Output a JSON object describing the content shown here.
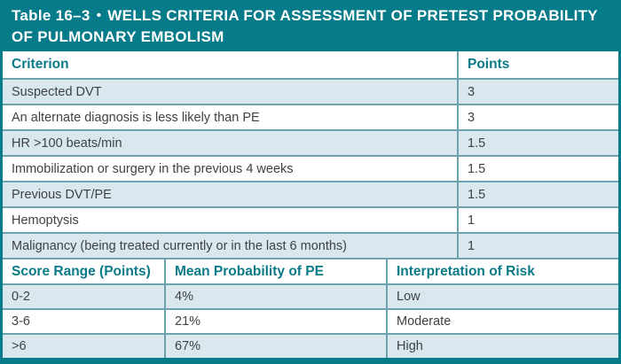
{
  "title": {
    "table_label": "Table 16–3",
    "bullet": "•",
    "heading": "WELLS CRITERIA FOR ASSESSMENT OF PRETEST PROBABILITY OF PULMONARY EMBOLISM"
  },
  "criteria_table": {
    "headers": {
      "criterion": "Criterion",
      "points": "Points"
    },
    "rows": [
      {
        "criterion": "Suspected DVT",
        "points": "3"
      },
      {
        "criterion": "An alternate diagnosis is less likely than PE",
        "points": "3"
      },
      {
        "criterion": "HR >100 beats/min",
        "points": "1.5"
      },
      {
        "criterion": "Immobilization or surgery in the previous 4 weeks",
        "points": "1.5"
      },
      {
        "criterion": "Previous DVT/PE",
        "points": "1.5"
      },
      {
        "criterion": "Hemoptysis",
        "points": "1"
      },
      {
        "criterion": "Malignancy (being treated currently or in the last 6 months)",
        "points": "1"
      }
    ]
  },
  "risk_table": {
    "headers": {
      "score_range": "Score Range (Points)",
      "probability": "Mean Probability of PE",
      "risk": "Interpretation of Risk"
    },
    "rows": [
      {
        "score_range": "0-2",
        "probability": "4%",
        "risk": "Low"
      },
      {
        "score_range": "3-6",
        "probability": "21%",
        "risk": "Moderate"
      },
      {
        "score_range": ">6",
        "probability": "67%",
        "risk": "High"
      }
    ]
  },
  "colors": {
    "teal": "#067b89",
    "header_text_teal": "#0b7a88",
    "shaded_row": "#d9e8ee",
    "internal_border": "#6ba2ad",
    "body_text": "#3f4245",
    "title_text": "#ffffff"
  }
}
